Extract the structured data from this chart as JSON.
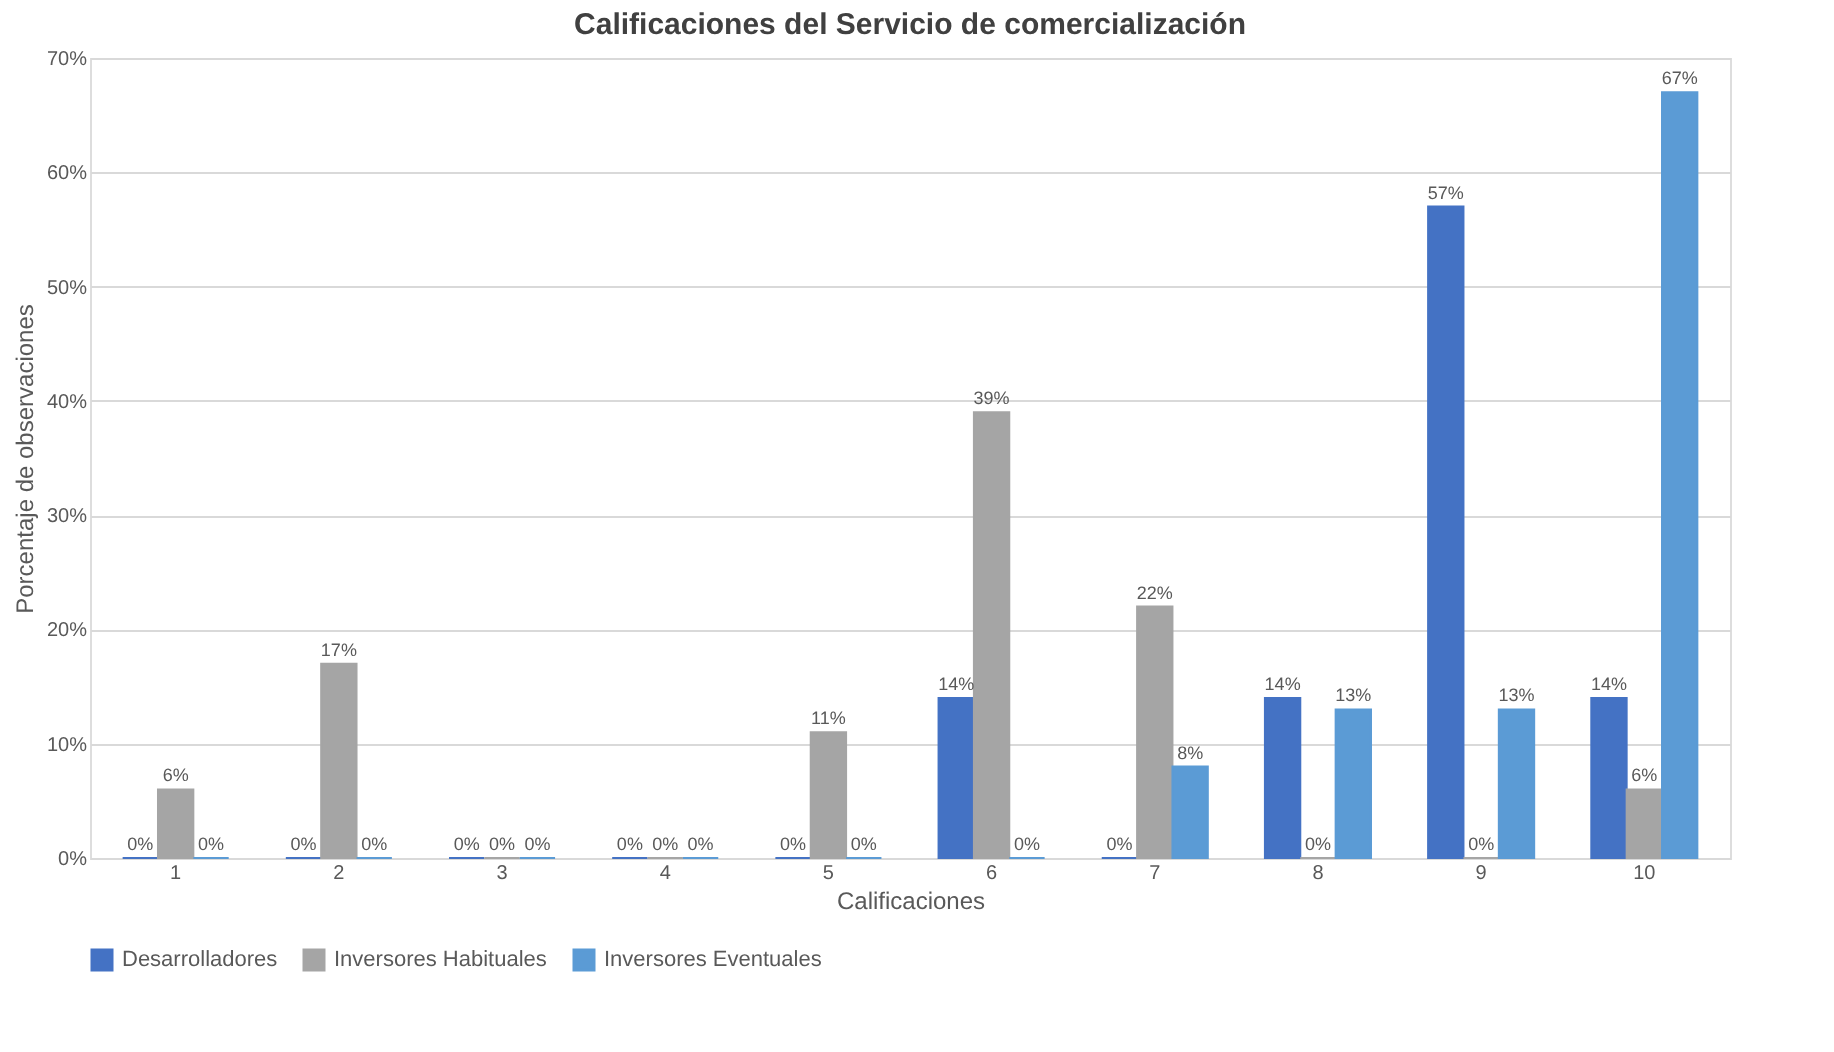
{
  "chart_data": {
    "type": "bar",
    "title": "Calificaciones del Servicio de comercialización",
    "xlabel": "Calificaciones",
    "ylabel": "Porcentaje de observaciones",
    "categories": [
      "1",
      "2",
      "3",
      "4",
      "5",
      "6",
      "7",
      "8",
      "9",
      "10"
    ],
    "series": [
      {
        "name": "Desarrolladores",
        "color": "#4472c4",
        "values": [
          0,
          0,
          0,
          0,
          0,
          14,
          0,
          14,
          57,
          14
        ],
        "value_labels": [
          "0%",
          "0%",
          "0%",
          "0%",
          "0%",
          "14%",
          "0%",
          "14%",
          "57%",
          "14%"
        ]
      },
      {
        "name": "Inversores Habituales",
        "color": "#a5a5a5",
        "values": [
          6,
          17,
          0,
          0,
          11,
          39,
          22,
          0,
          0,
          6
        ],
        "value_labels": [
          "6%",
          "17%",
          "0%",
          "0%",
          "11%",
          "39%",
          "22%",
          "0%",
          "0%",
          "6%"
        ]
      },
      {
        "name": "Inversores Eventuales",
        "color": "#5b9bd5",
        "values": [
          0,
          0,
          0,
          0,
          0,
          0,
          8,
          13,
          13,
          67
        ],
        "value_labels": [
          "0%",
          "0%",
          "0%",
          "0%",
          "0%",
          "0%",
          "8%",
          "13%",
          "13%",
          "67%"
        ]
      }
    ],
    "ylim": [
      0,
      70
    ],
    "yticks": [
      {
        "value": 0,
        "label": "0%"
      },
      {
        "value": 10,
        "label": "10%"
      },
      {
        "value": 20,
        "label": "20%"
      },
      {
        "value": 30,
        "label": "30%"
      },
      {
        "value": 40,
        "label": "40%"
      },
      {
        "value": 50,
        "label": "50%"
      },
      {
        "value": 60,
        "label": "60%"
      },
      {
        "value": 70,
        "label": "70%"
      }
    ],
    "grid": "y",
    "legend": "bottom"
  }
}
